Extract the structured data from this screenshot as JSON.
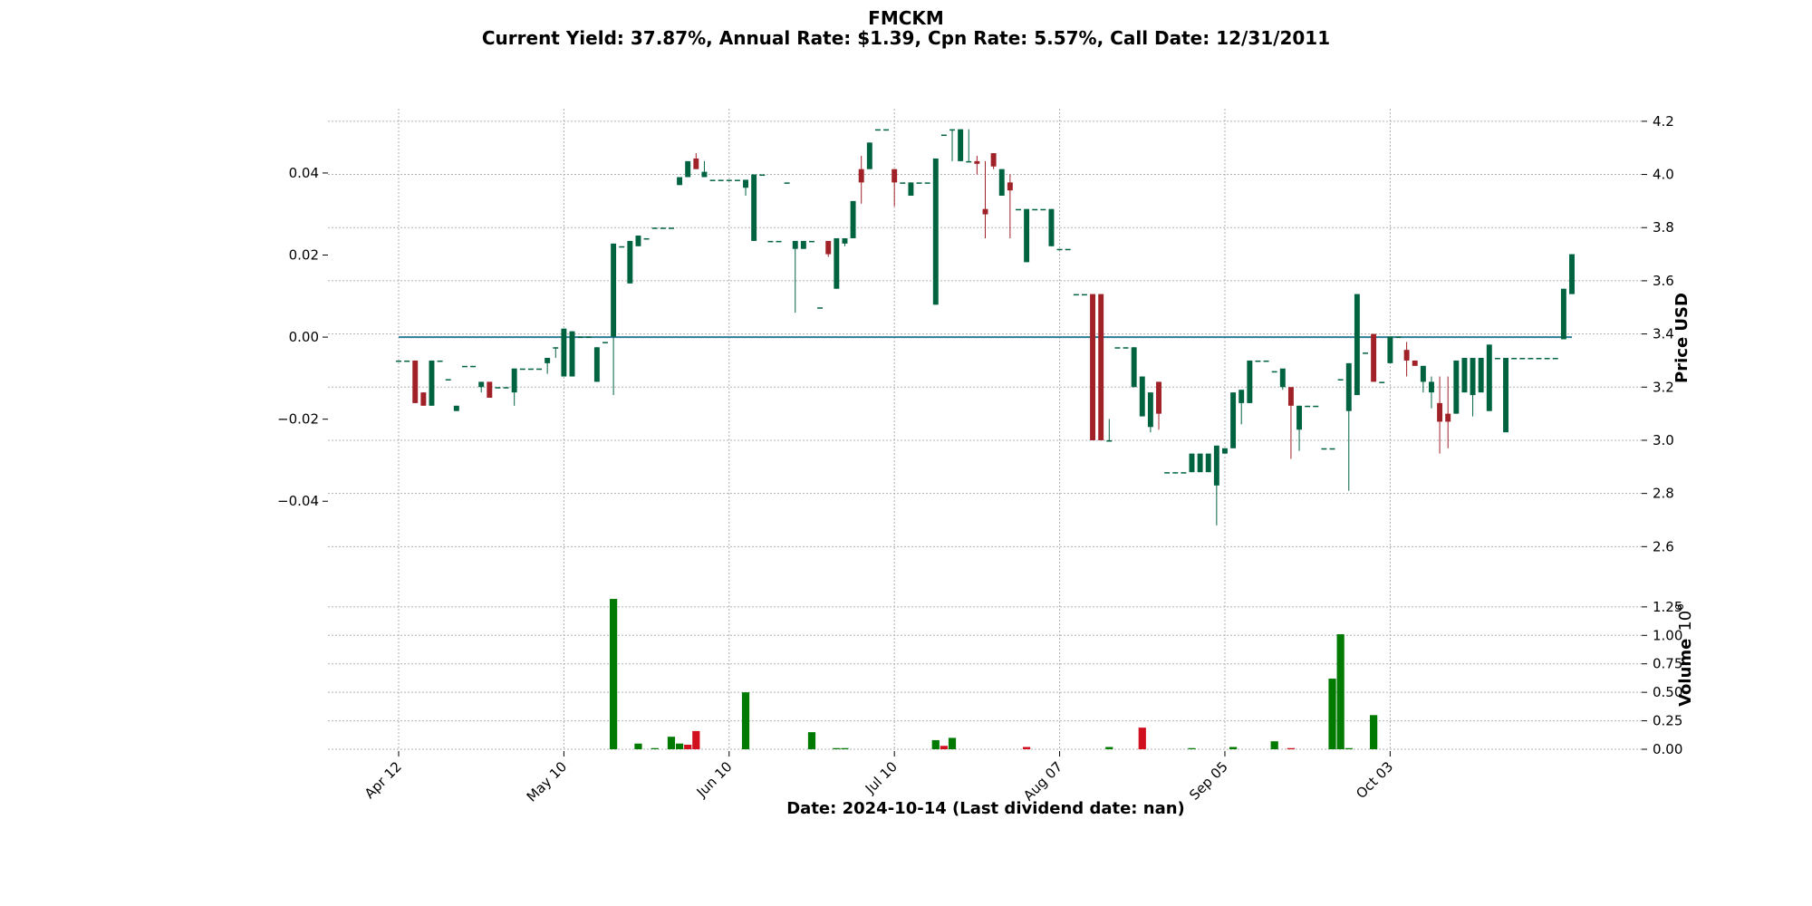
{
  "header": {
    "title": "FMCKM",
    "subtitle": "Current Yield: 37.87%, Annual Rate: $1.39, Cpn Rate: 5.57%, Call Date: 12/31/2011"
  },
  "colors": {
    "up": "#006340",
    "down": "#a02128",
    "vol_up": "#007a00",
    "vol_down": "#d0101e",
    "zero_line": "#2e7d96",
    "grid": "#b0b0b0"
  },
  "chart_data": {
    "type": "candlestick",
    "x_axis": {
      "xlabel": "Date: 2024-10-14   (Last dividend date: nan)",
      "tick_labels": [
        "Apr 12",
        "May 10",
        "Jun 10",
        "Jul 10",
        "Aug 07",
        "Sep 05",
        "Oct 03"
      ],
      "tick_positions": [
        0,
        20,
        40,
        60,
        80,
        100,
        120
      ]
    },
    "price_axis": {
      "ylabel": "Price USD",
      "ylim": [
        2.55,
        4.22
      ],
      "ticks": [
        2.6,
        2.8,
        3.0,
        3.2,
        3.4,
        3.6,
        3.8,
        4.0,
        4.2
      ],
      "tick_labels": [
        "2.6",
        "2.8",
        "3.0",
        "3.2",
        "3.4",
        "3.6",
        "3.8",
        "4.0",
        "4.2"
      ]
    },
    "yield_axis": {
      "ylim": [
        -0.0543,
        0.0539
      ],
      "ticks": [
        -0.04,
        -0.02,
        0.0,
        0.02,
        0.04
      ],
      "tick_labels": [
        "−0.04",
        "−0.02",
        "0.00",
        "0.02",
        "0.04"
      ],
      "zero_line": 0.0
    },
    "volume_axis": {
      "ylabel": "Volume",
      "exponent_label": "10",
      "exponent_power": "6",
      "ylim": [
        0,
        1.4
      ],
      "ticks": [
        0,
        0.25,
        0.5,
        0.75,
        1.0,
        1.25
      ],
      "tick_labels": [
        "0.00",
        "0.25",
        "0.50",
        "0.75",
        "1.00",
        "1.25"
      ]
    },
    "candles": [
      [
        3.3,
        3.3,
        3.3,
        3.3
      ],
      [
        3.3,
        3.3,
        3.3,
        3.3
      ],
      [
        3.3,
        3.3,
        3.14,
        3.14
      ],
      [
        3.18,
        3.18,
        3.13,
        3.13
      ],
      [
        3.13,
        3.3,
        3.13,
        3.3
      ],
      [
        3.3,
        3.3,
        3.3,
        3.3
      ],
      [
        3.23,
        3.23,
        3.23,
        3.23
      ],
      [
        3.11,
        3.13,
        3.11,
        3.13
      ],
      [
        3.28,
        3.28,
        3.28,
        3.28
      ],
      [
        3.28,
        3.28,
        3.28,
        3.28
      ],
      [
        3.2,
        3.22,
        3.18,
        3.22
      ],
      [
        3.22,
        3.22,
        3.16,
        3.16
      ],
      [
        3.2,
        3.2,
        3.2,
        3.2
      ],
      [
        3.2,
        3.2,
        3.2,
        3.2
      ],
      [
        3.18,
        3.27,
        3.13,
        3.27
      ],
      [
        3.27,
        3.27,
        3.27,
        3.27
      ],
      [
        3.27,
        3.27,
        3.27,
        3.27
      ],
      [
        3.27,
        3.27,
        3.27,
        3.27
      ],
      [
        3.29,
        3.31,
        3.25,
        3.31
      ],
      [
        3.35,
        3.35,
        3.31,
        3.35
      ],
      [
        3.24,
        3.42,
        3.24,
        3.42
      ],
      [
        3.24,
        3.41,
        3.24,
        3.41
      ],
      [
        3.39,
        3.39,
        3.39,
        3.39
      ],
      [
        3.39,
        3.39,
        3.39,
        3.39
      ],
      [
        3.22,
        3.35,
        3.22,
        3.35
      ],
      [
        3.37,
        3.37,
        3.37,
        3.37
      ],
      [
        3.39,
        3.74,
        3.17,
        3.74
      ],
      [
        3.73,
        3.73,
        3.73,
        3.73
      ],
      [
        3.59,
        3.75,
        3.59,
        3.75
      ],
      [
        3.73,
        3.77,
        3.73,
        3.77
      ],
      [
        3.76,
        3.76,
        3.76,
        3.76
      ],
      [
        3.8,
        3.8,
        3.8,
        3.8
      ],
      [
        3.8,
        3.8,
        3.8,
        3.8
      ],
      [
        3.8,
        3.8,
        3.8,
        3.8
      ],
      [
        3.96,
        3.99,
        3.96,
        3.99
      ],
      [
        3.99,
        4.05,
        3.99,
        4.05
      ],
      [
        4.06,
        4.08,
        4.02,
        4.02
      ],
      [
        3.99,
        4.05,
        3.99,
        4.01
      ],
      [
        3.98,
        3.98,
        3.98,
        3.98
      ],
      [
        3.98,
        3.98,
        3.98,
        3.98
      ],
      [
        3.98,
        3.98,
        3.98,
        3.98
      ],
      [
        3.98,
        3.98,
        3.98,
        3.98
      ],
      [
        3.95,
        3.98,
        3.92,
        3.98
      ],
      [
        3.75,
        4.0,
        3.75,
        4.0
      ],
      [
        4.0,
        4.0,
        4.0,
        4.0
      ],
      [
        3.75,
        3.75,
        3.75,
        3.75
      ],
      [
        3.75,
        3.75,
        3.75,
        3.75
      ],
      [
        3.97,
        3.97,
        3.97,
        3.97
      ],
      [
        3.72,
        3.75,
        3.48,
        3.75
      ],
      [
        3.72,
        3.75,
        3.72,
        3.75
      ],
      [
        3.75,
        3.75,
        3.75,
        3.75
      ],
      [
        3.5,
        3.5,
        3.5,
        3.5
      ],
      [
        3.75,
        3.75,
        3.69,
        3.7
      ],
      [
        3.57,
        3.76,
        3.57,
        3.76
      ],
      [
        3.74,
        3.76,
        3.73,
        3.76
      ],
      [
        3.76,
        3.9,
        3.76,
        3.9
      ],
      [
        4.02,
        4.07,
        3.89,
        3.97
      ],
      [
        4.02,
        4.12,
        4.02,
        4.12
      ],
      [
        4.17,
        4.17,
        4.17,
        4.17
      ],
      [
        4.17,
        4.17,
        4.17,
        4.17
      ],
      [
        4.02,
        4.02,
        3.88,
        3.97
      ],
      [
        3.97,
        3.97,
        3.97,
        3.97
      ],
      [
        3.92,
        3.97,
        3.92,
        3.97
      ],
      [
        3.97,
        3.97,
        3.97,
        3.97
      ],
      [
        3.97,
        3.97,
        3.97,
        3.97
      ],
      [
        3.51,
        4.06,
        3.51,
        4.06
      ],
      [
        4.15,
        4.15,
        4.15,
        4.15
      ],
      [
        4.17,
        4.17,
        4.05,
        4.17
      ],
      [
        4.05,
        4.17,
        4.05,
        4.17
      ],
      [
        4.05,
        4.17,
        4.05,
        4.05
      ],
      [
        4.05,
        4.07,
        4.0,
        4.04
      ],
      [
        3.87,
        4.05,
        3.76,
        3.85
      ],
      [
        4.08,
        4.08,
        4.02,
        4.03
      ],
      [
        3.92,
        4.02,
        3.92,
        4.02
      ],
      [
        3.97,
        4.0,
        3.76,
        3.94
      ],
      [
        3.87,
        3.87,
        3.87,
        3.87
      ],
      [
        3.67,
        3.87,
        3.67,
        3.87
      ],
      [
        3.87,
        3.87,
        3.87,
        3.87
      ],
      [
        3.87,
        3.87,
        3.87,
        3.87
      ],
      [
        3.73,
        3.87,
        3.73,
        3.87
      ],
      [
        3.72,
        3.72,
        3.72,
        3.72
      ],
      [
        3.72,
        3.72,
        3.72,
        3.72
      ],
      [
        3.55,
        3.55,
        3.55,
        3.55
      ],
      [
        3.55,
        3.55,
        3.55,
        3.55
      ],
      [
        3.55,
        3.55,
        3.0,
        3.0
      ],
      [
        3.55,
        3.55,
        3.0,
        3.0
      ],
      [
        3.0,
        3.08,
        3.0,
        3.0
      ],
      [
        3.35,
        3.35,
        3.35,
        3.35
      ],
      [
        3.35,
        3.35,
        3.35,
        3.35
      ],
      [
        3.2,
        3.35,
        3.2,
        3.35
      ],
      [
        3.09,
        3.24,
        3.09,
        3.24
      ],
      [
        3.05,
        3.18,
        3.03,
        3.18
      ],
      [
        3.22,
        3.22,
        3.04,
        3.1
      ],
      [
        2.88,
        2.88,
        2.88,
        2.88
      ],
      [
        2.88,
        2.88,
        2.88,
        2.88
      ],
      [
        2.88,
        2.88,
        2.88,
        2.88
      ],
      [
        2.88,
        2.95,
        2.88,
        2.95
      ],
      [
        2.88,
        2.95,
        2.88,
        2.95
      ],
      [
        2.88,
        2.95,
        2.88,
        2.95
      ],
      [
        2.83,
        2.98,
        2.68,
        2.98
      ],
      [
        2.95,
        2.97,
        2.95,
        2.97
      ],
      [
        2.97,
        3.18,
        2.97,
        3.18
      ],
      [
        3.14,
        3.19,
        3.06,
        3.19
      ],
      [
        3.14,
        3.3,
        3.14,
        3.3
      ],
      [
        3.3,
        3.3,
        3.3,
        3.3
      ],
      [
        3.3,
        3.3,
        3.3,
        3.3
      ],
      [
        3.26,
        3.26,
        3.26,
        3.26
      ],
      [
        3.2,
        3.26,
        3.19,
        3.27
      ],
      [
        3.2,
        3.2,
        2.93,
        3.13
      ],
      [
        3.04,
        3.13,
        2.96,
        3.13
      ],
      [
        3.13,
        3.13,
        3.13,
        3.13
      ],
      [
        3.13,
        3.13,
        3.13,
        3.13
      ],
      [
        2.97,
        2.97,
        2.97,
        2.97
      ],
      [
        2.97,
        2.97,
        2.97,
        2.97
      ],
      [
        3.23,
        3.23,
        3.23,
        3.23
      ],
      [
        3.11,
        3.29,
        2.81,
        3.29
      ],
      [
        3.17,
        3.55,
        3.17,
        3.55
      ],
      [
        3.33,
        3.33,
        3.33,
        3.33
      ],
      [
        3.4,
        3.4,
        3.22,
        3.22
      ],
      [
        3.22,
        3.22,
        3.22,
        3.22
      ],
      [
        3.29,
        3.39,
        3.29,
        3.39
      ],
      [
        3.39,
        3.39,
        3.39,
        3.39
      ],
      [
        3.34,
        3.37,
        3.24,
        3.3
      ],
      [
        3.3,
        3.3,
        3.28,
        3.28
      ],
      [
        3.22,
        3.28,
        3.18,
        3.28
      ]
    ],
    "candles_tail": [
      [
        3.18,
        3.24,
        3.12,
        3.22
      ],
      [
        3.14,
        3.24,
        2.95,
        3.07
      ],
      [
        3.1,
        3.24,
        2.97,
        3.07
      ],
      [
        3.1,
        3.3,
        3.1,
        3.3
      ],
      [
        3.18,
        3.31,
        3.18,
        3.31
      ],
      [
        3.17,
        3.31,
        3.09,
        3.31
      ],
      [
        3.18,
        3.31,
        3.18,
        3.31
      ],
      [
        3.11,
        3.36,
        3.11,
        3.36
      ],
      [
        3.31,
        3.31,
        3.31,
        3.31
      ],
      [
        3.03,
        3.31,
        3.03,
        3.31
      ],
      [
        3.31,
        3.31,
        3.31,
        3.31
      ],
      [
        3.31,
        3.31,
        3.31,
        3.31
      ],
      [
        3.31,
        3.31,
        3.31,
        3.31
      ],
      [
        3.31,
        3.31,
        3.31,
        3.31
      ],
      [
        3.31,
        3.31,
        3.31,
        3.31
      ],
      [
        3.31,
        3.31,
        3.31,
        3.31
      ],
      [
        3.38,
        3.57,
        3.38,
        3.57
      ],
      [
        3.55,
        3.7,
        3.55,
        3.7
      ]
    ],
    "volume_note": "Volume bars in millions, aligned to candle index",
    "volume": [
      [
        26,
        1.32,
        "up"
      ],
      [
        29,
        0.05,
        "up"
      ],
      [
        31,
        0.01,
        "up"
      ],
      [
        33,
        0.11,
        "up"
      ],
      [
        34,
        0.05,
        "up"
      ],
      [
        35,
        0.04,
        "down"
      ],
      [
        36,
        0.16,
        "down"
      ],
      [
        42,
        0.5,
        "up"
      ],
      [
        50,
        0.15,
        "up"
      ],
      [
        53,
        0.01,
        "up"
      ],
      [
        54,
        0.01,
        "up"
      ],
      [
        65,
        0.08,
        "up"
      ],
      [
        66,
        0.03,
        "down"
      ],
      [
        67,
        0.1,
        "up"
      ],
      [
        76,
        0.02,
        "down"
      ],
      [
        86,
        0.02,
        "up"
      ],
      [
        90,
        0.19,
        "down"
      ],
      [
        96,
        0.01,
        "up"
      ],
      [
        101,
        0.02,
        "up"
      ],
      [
        106,
        0.07,
        "up"
      ],
      [
        108,
        0.01,
        "down"
      ],
      [
        113,
        0.62,
        "up"
      ],
      [
        114,
        1.01,
        "up"
      ],
      [
        115,
        0.01,
        "up"
      ],
      [
        118,
        0.3,
        "up"
      ]
    ]
  }
}
